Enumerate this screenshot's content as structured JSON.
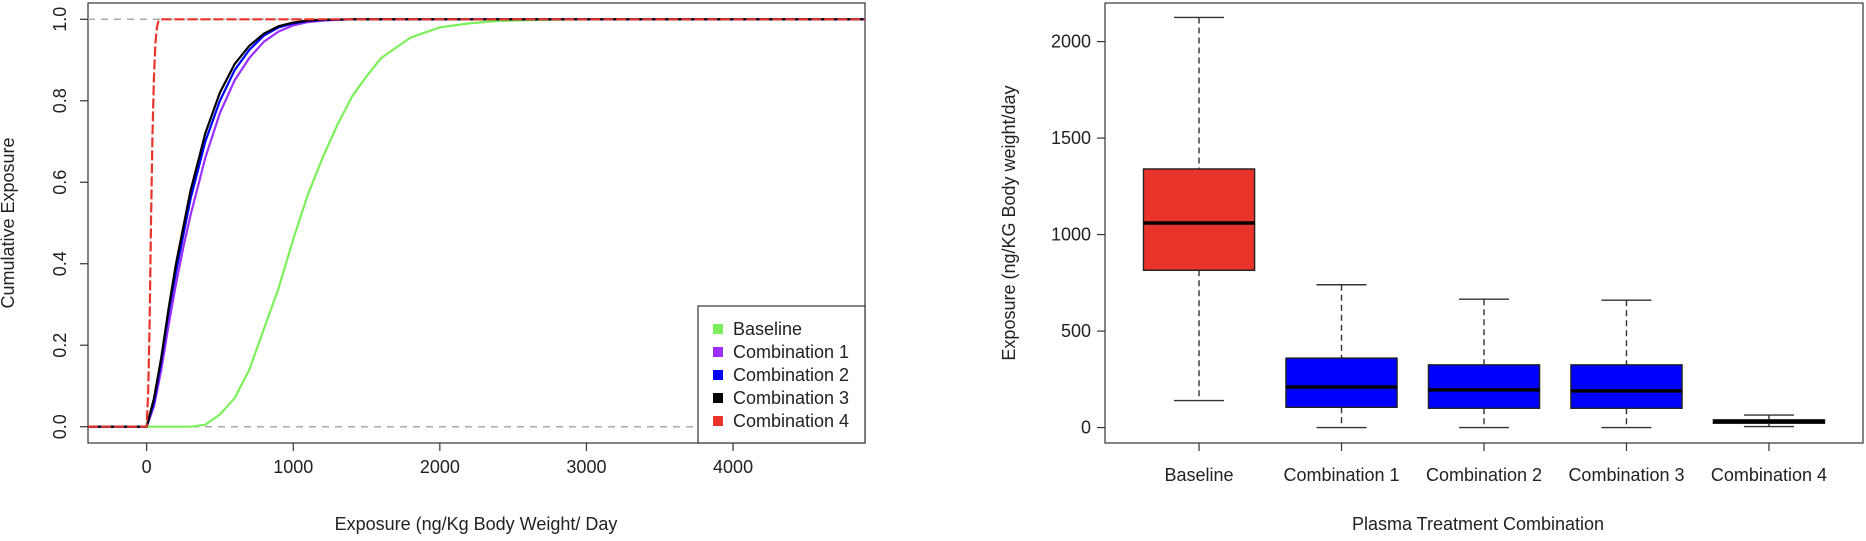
{
  "chart_data": [
    {
      "type": "line",
      "title": "",
      "xlabel": "Exposure (ng/Kg Body Weight/ Day",
      "ylabel": "Cumulative Exposure",
      "xlim": [
        -400,
        4900
      ],
      "ylim": [
        -0.04,
        1.04
      ],
      "xticks": [
        0,
        1000,
        2000,
        3000,
        4000
      ],
      "yticks": [
        0.0,
        0.2,
        0.4,
        0.6,
        0.8,
        1.0
      ],
      "xtick_labels": [
        "0",
        "1000",
        "2000",
        "3000",
        "4000"
      ],
      "ytick_labels": [
        "0.0",
        "0.2",
        "0.4",
        "0.6",
        "0.8",
        "1.0"
      ],
      "reference_lines_y": [
        0,
        1
      ],
      "legend_position": "bottom-right",
      "series": [
        {
          "name": "Baseline",
          "color": "#7CF05A",
          "x": [
            -400,
            300,
            400,
            500,
            600,
            700,
            800,
            900,
            1000,
            1100,
            1200,
            1300,
            1400,
            1500,
            1600,
            1800,
            2000,
            2200,
            2400,
            2600,
            2800,
            3000,
            4900
          ],
          "y": [
            0,
            0,
            0.005,
            0.03,
            0.07,
            0.14,
            0.24,
            0.34,
            0.46,
            0.57,
            0.66,
            0.74,
            0.81,
            0.86,
            0.905,
            0.955,
            0.98,
            0.99,
            0.996,
            0.998,
            0.999,
            1,
            1
          ]
        },
        {
          "name": "Combination 1",
          "color": "#9B30FF",
          "x": [
            -400,
            0,
            50,
            100,
            150,
            200,
            250,
            300,
            350,
            400,
            500,
            600,
            700,
            800,
            900,
            1000,
            1100,
            1200,
            1400,
            4900
          ],
          "y": [
            0,
            0,
            0.05,
            0.14,
            0.25,
            0.35,
            0.44,
            0.52,
            0.59,
            0.66,
            0.77,
            0.85,
            0.905,
            0.945,
            0.97,
            0.985,
            0.993,
            0.997,
            1,
            1
          ]
        },
        {
          "name": "Combination 2",
          "color": "#0000FF",
          "x": [
            -400,
            0,
            50,
            100,
            150,
            200,
            250,
            300,
            350,
            400,
            500,
            600,
            700,
            800,
            900,
            1000,
            1100,
            1200,
            1400,
            4900
          ],
          "y": [
            0,
            0,
            0.06,
            0.16,
            0.28,
            0.38,
            0.47,
            0.56,
            0.63,
            0.7,
            0.8,
            0.875,
            0.925,
            0.96,
            0.98,
            0.99,
            0.996,
            0.998,
            1,
            1
          ]
        },
        {
          "name": "Combination 3",
          "color": "#000000",
          "x": [
            -400,
            0,
            50,
            100,
            150,
            200,
            250,
            300,
            350,
            400,
            500,
            600,
            700,
            800,
            900,
            1000,
            1100,
            1200,
            1400,
            4900
          ],
          "y": [
            0,
            0,
            0.07,
            0.17,
            0.29,
            0.4,
            0.49,
            0.58,
            0.65,
            0.72,
            0.82,
            0.89,
            0.935,
            0.965,
            0.983,
            0.992,
            0.997,
            0.999,
            1,
            1
          ]
        },
        {
          "name": "Combination 4",
          "color": "#E8342A",
          "x": [
            -400,
            0,
            10,
            20,
            30,
            40,
            50,
            60,
            70,
            80,
            90,
            100,
            4900
          ],
          "y": [
            0,
            0,
            0.08,
            0.25,
            0.5,
            0.72,
            0.86,
            0.94,
            0.98,
            0.995,
            0.999,
            1,
            1
          ]
        }
      ]
    },
    {
      "type": "box",
      "title": "",
      "xlabel": "Plasma Treatment Combination",
      "ylabel": "Exposure (ng/KG Body weight/day",
      "ylim": [
        -80,
        2200
      ],
      "yticks": [
        0,
        500,
        1000,
        1500,
        2000
      ],
      "ytick_labels": [
        "0",
        "500",
        "1000",
        "1500",
        "2000"
      ],
      "categories": [
        "Baseline",
        "Combination 1",
        "Combination 2",
        "Combination 3",
        "Combination 4"
      ],
      "boxes": [
        {
          "name": "Baseline",
          "color": "#E8342A",
          "min": 140,
          "q1": 815,
          "median": 1060,
          "q3": 1340,
          "max": 2125
        },
        {
          "name": "Combination 1",
          "color": "#0000FF",
          "min": 0,
          "q1": 105,
          "median": 210,
          "q3": 360,
          "max": 740
        },
        {
          "name": "Combination 2",
          "color": "#0000FF",
          "min": 0,
          "q1": 100,
          "median": 195,
          "q3": 325,
          "max": 665
        },
        {
          "name": "Combination 3",
          "color": "#0000FF",
          "min": 0,
          "q1": 100,
          "median": 190,
          "q3": 325,
          "max": 660
        },
        {
          "name": "Combination 4",
          "color": "#0000FF",
          "min": 5,
          "q1": 22,
          "median": 33,
          "q3": 40,
          "max": 65
        }
      ]
    }
  ]
}
